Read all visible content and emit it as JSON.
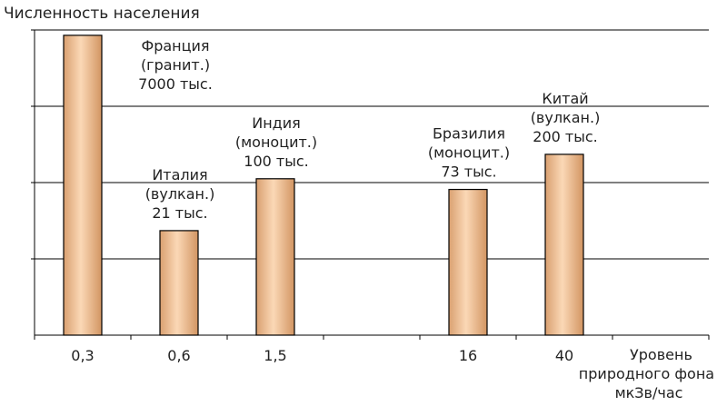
{
  "chart_data": {
    "type": "bar",
    "title": "",
    "ylabel": "Численность населения",
    "xlabel": [
      "Уровень",
      "природного фона",
      "мкЗв/час"
    ],
    "categories": [
      "0,3",
      "0,6",
      "1,5",
      "",
      "16",
      "40",
      ""
    ],
    "values": [
      3.93,
      1.37,
      2.05,
      null,
      1.91,
      2.37,
      null
    ],
    "bar_labels": [
      [
        "Франция",
        "(гранит.)",
        "7000 тыс."
      ],
      [
        "Италия",
        "(вулкан.)",
        "21 тыс."
      ],
      [
        "Индия",
        "(моноцит.)",
        "100 тыс."
      ],
      [],
      [
        "Бразилия",
        "(моноцит.)",
        "73 тыс."
      ],
      [
        "Китай",
        "(вулкан.)",
        "200 тыс."
      ],
      []
    ],
    "ylim": [
      0,
      4
    ],
    "grid": true,
    "bar_color": "#f3c49a",
    "bar_edge_color": "#000000"
  }
}
